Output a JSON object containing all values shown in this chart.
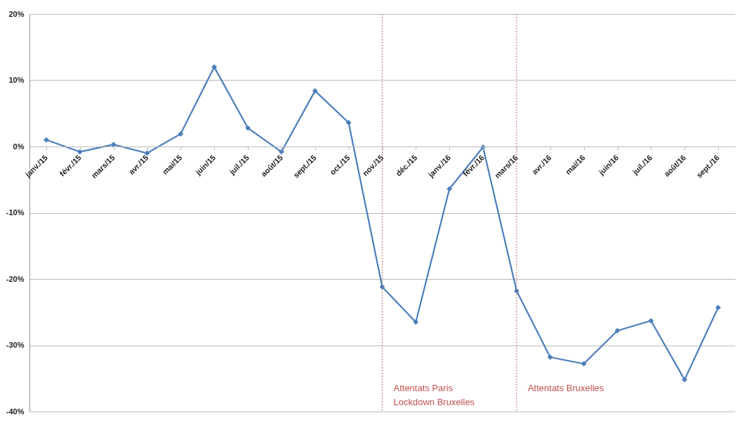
{
  "chart_data": {
    "type": "line",
    "categories": [
      "janv./15",
      "févr./15",
      "mars/15",
      "avr./15",
      "mai/15",
      "juin/15",
      "juil./15",
      "août/15",
      "sept./15",
      "oct./15",
      "nov./15",
      "déc./15",
      "janv./16",
      "févr./16",
      "mars/16",
      "avr./16",
      "mai/16",
      "juin/16",
      "juil./16",
      "août/16",
      "sept./16"
    ],
    "series": [
      {
        "color": "#4a7ebb",
        "values": [
          1.0,
          -0.8,
          0.3,
          -1.0,
          1.9,
          12.0,
          2.8,
          -0.8,
          8.4,
          3.6,
          -21.2,
          -26.5,
          -6.4,
          -0.1,
          -21.8,
          -31.8,
          -32.8,
          -27.8,
          -26.3,
          -35.2,
          -24.3
        ]
      }
    ],
    "ylim": [
      -40,
      20
    ],
    "yticks": [
      {
        "value": -40,
        "label": "-40%"
      },
      {
        "value": -30,
        "label": "-30%"
      },
      {
        "value": -20,
        "label": "-20%"
      },
      {
        "value": -10,
        "label": "-10%"
      },
      {
        "value": 0,
        "label": "0%"
      },
      {
        "value": 10,
        "label": "10%"
      },
      {
        "value": 20,
        "label": "20%"
      }
    ],
    "grid": "y",
    "marker": "diamond",
    "line_style": "solid",
    "ref_lines": [
      {
        "axis": "x",
        "value": "nov./15",
        "label": "Attentats Paris\nLockdown  Bruxelles",
        "color": "#c0504d",
        "line_style": "dotted"
      },
      {
        "axis": "x",
        "value": "mars/16",
        "label": "Attentats Bruxelles",
        "color": "#c0504d",
        "line_style": "dotted"
      }
    ]
  }
}
